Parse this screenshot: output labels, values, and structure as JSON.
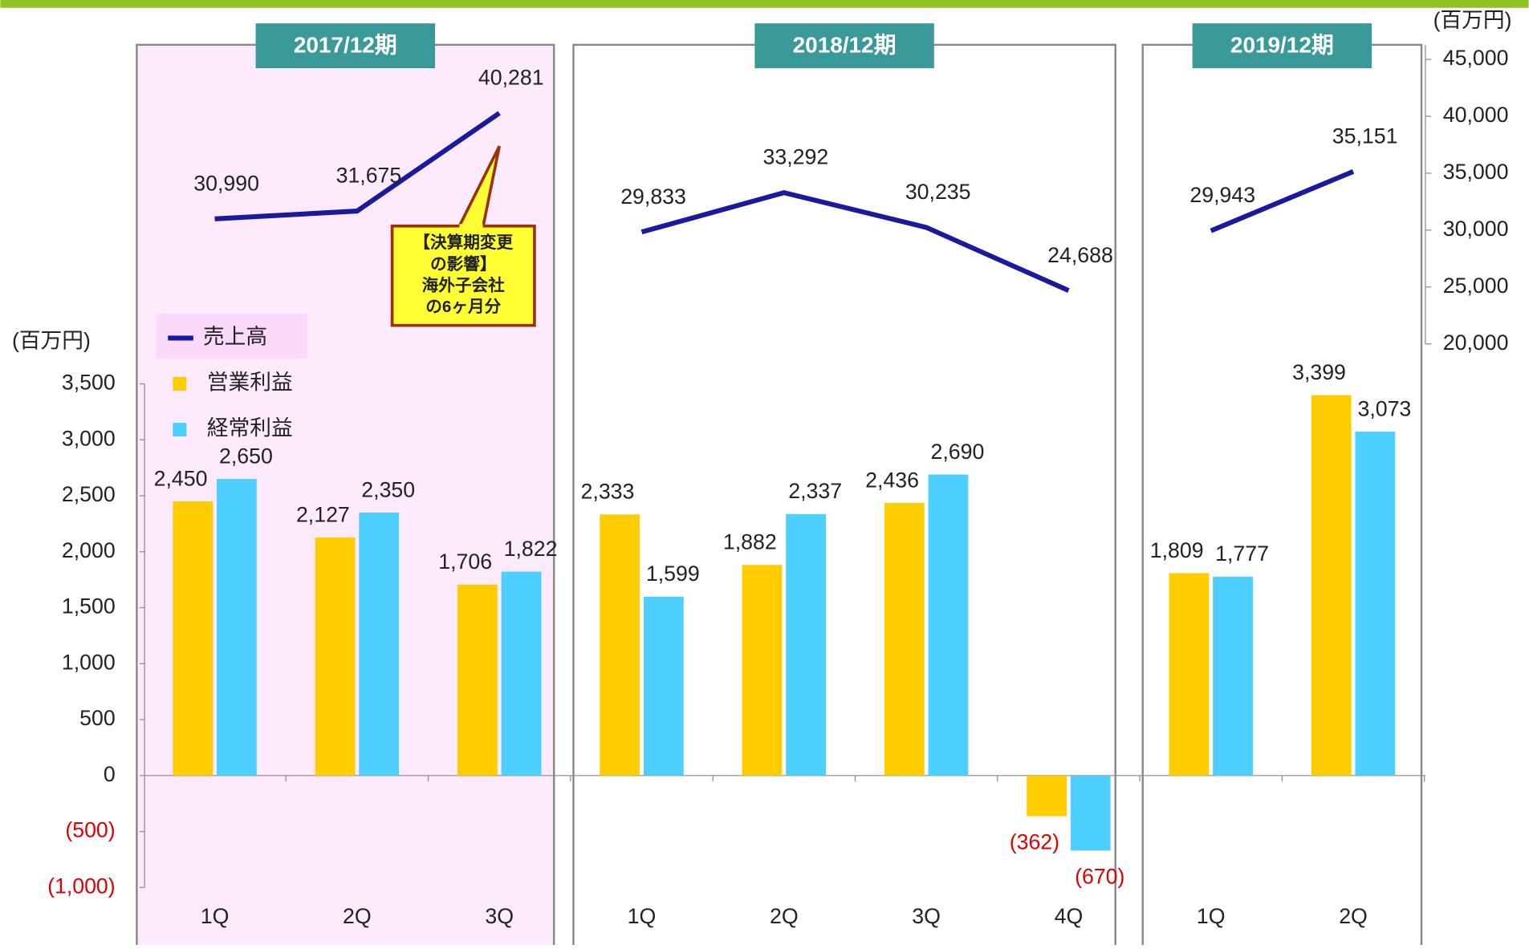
{
  "chart_data": {
    "type": "bar",
    "periods": [
      {
        "label": "2017/12期",
        "count": 3
      },
      {
        "label": "2018/12期",
        "count": 4
      },
      {
        "label": "2019/12期",
        "count": 2
      }
    ],
    "categories": [
      "1Q",
      "2Q",
      "3Q",
      "1Q",
      "2Q",
      "3Q",
      "4Q",
      "1Q",
      "2Q"
    ],
    "series": [
      {
        "name": "売上高",
        "type": "line",
        "axis": "y2",
        "color": "#1a1aa0",
        "values": [
          30990,
          31675,
          40281,
          29833,
          33292,
          30235,
          24688,
          29943,
          35151
        ],
        "value_labels": [
          "30,990",
          "31,675",
          "40,281",
          "29,833",
          "33,292",
          "30,235",
          "24,688",
          "29,943",
          "35,151"
        ]
      },
      {
        "name": "営業利益",
        "color": "#ffcc00",
        "values": [
          2450,
          2127,
          1706,
          2333,
          1882,
          2436,
          -362,
          1809,
          3399
        ],
        "value_labels": [
          "2,450",
          "2,127",
          "1,706",
          "2,333",
          "1,882",
          "2,436",
          "(362)",
          "1,809",
          "3,399"
        ]
      },
      {
        "name": "経常利益",
        "color": "#4dcfff",
        "values": [
          2650,
          2350,
          1822,
          1599,
          2337,
          2690,
          -670,
          1777,
          3073
        ],
        "value_labels": [
          "2,650",
          "2,350",
          "1,822",
          "1,599",
          "2,337",
          "2,690",
          "(670)",
          "1,777",
          "3,073"
        ]
      }
    ],
    "y_unit": "(百万円)",
    "y2_unit": "(百万円)",
    "ylim": [
      -1000,
      3500
    ],
    "yticks": [
      {
        "value": -1000,
        "label": "(1,000)"
      },
      {
        "value": -500,
        "label": "(500)"
      },
      0,
      500,
      {
        "value": 1000,
        "label": "1,000"
      },
      {
        "value": 1500,
        "label": "1,500"
      },
      {
        "value": 2000,
        "label": "2,000"
      },
      {
        "value": 2500,
        "label": "2,500"
      },
      {
        "value": 3000,
        "label": "3,000"
      },
      {
        "value": 3500,
        "label": "3,500"
      }
    ],
    "y2lim": [
      20000,
      45000
    ],
    "y2ticks": [
      {
        "value": 20000,
        "label": "20,000"
      },
      {
        "value": 25000,
        "label": "25,000"
      },
      {
        "value": 30000,
        "label": "30,000"
      },
      {
        "value": 35000,
        "label": "35,000"
      },
      {
        "value": 40000,
        "label": "40,000"
      },
      {
        "value": 45000,
        "label": "45,000"
      }
    ],
    "annotation": [
      "【決算期変更",
      "の影響】",
      "海外子会社",
      "の6ヶ月分"
    ]
  }
}
